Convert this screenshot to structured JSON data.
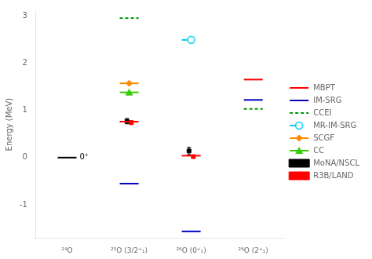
{
  "chart_data": {
    "type": "scatter",
    "ylabel": "Energy (MeV)",
    "categories": [
      "²⁴O",
      "²⁵O (3/2⁺₁)",
      "²⁶O (0⁺₁)",
      "²⁶O (2⁺₁)"
    ],
    "ylim": [
      -1.7,
      3.1
    ],
    "yticks": [
      -1,
      0,
      1,
      2,
      3
    ],
    "grid": false,
    "legend": "right",
    "series": [
      {
        "color": "#000000",
        "line_style": "solid",
        "values": [
          0.0,
          null,
          null,
          null
        ]
      },
      {
        "name": "MBPT",
        "color": "#ff0000",
        "line_style": "solid",
        "values": [
          null,
          0.76,
          0.04,
          1.65
        ]
      },
      {
        "name": "IM-SRG",
        "color": "#0000bb",
        "line_style": "solid",
        "values": [
          null,
          -0.55,
          -1.56,
          1.22
        ]
      },
      {
        "name": "CCEI",
        "color": "#009900",
        "line_style": "dashed",
        "values": [
          null,
          2.95,
          null,
          1.03
        ]
      },
      {
        "name": "MR-IM-SRG",
        "color": "#00ccee",
        "line_style": "solid",
        "marker": "circle",
        "values": [
          null,
          null,
          2.49,
          null
        ]
      },
      {
        "name": "SCGF",
        "color": "#ff8800",
        "line_style": "solid",
        "marker": "diamond",
        "values": [
          null,
          1.57,
          null,
          null
        ]
      },
      {
        "name": "CC",
        "color": "#33cc00",
        "line_style": "solid",
        "marker": "triangle",
        "values": [
          null,
          1.38,
          null,
          null
        ]
      },
      {
        "name": "MoNA/NSCL",
        "color": "#000000",
        "marker": "square",
        "values": [
          null,
          0.77,
          0.14,
          null
        ],
        "errors": [
          null,
          0.055,
          0.08,
          null
        ]
      },
      {
        "name": "R3B/LAND",
        "color": "#ff0000",
        "marker": "square",
        "values": [
          null,
          0.74,
          0.02,
          null
        ],
        "errors": [
          null,
          0.04,
          0.025,
          null
        ]
      }
    ],
    "annotations": [
      {
        "text": "0⁺",
        "x": "²⁴O",
        "y": 0.0
      }
    ]
  }
}
